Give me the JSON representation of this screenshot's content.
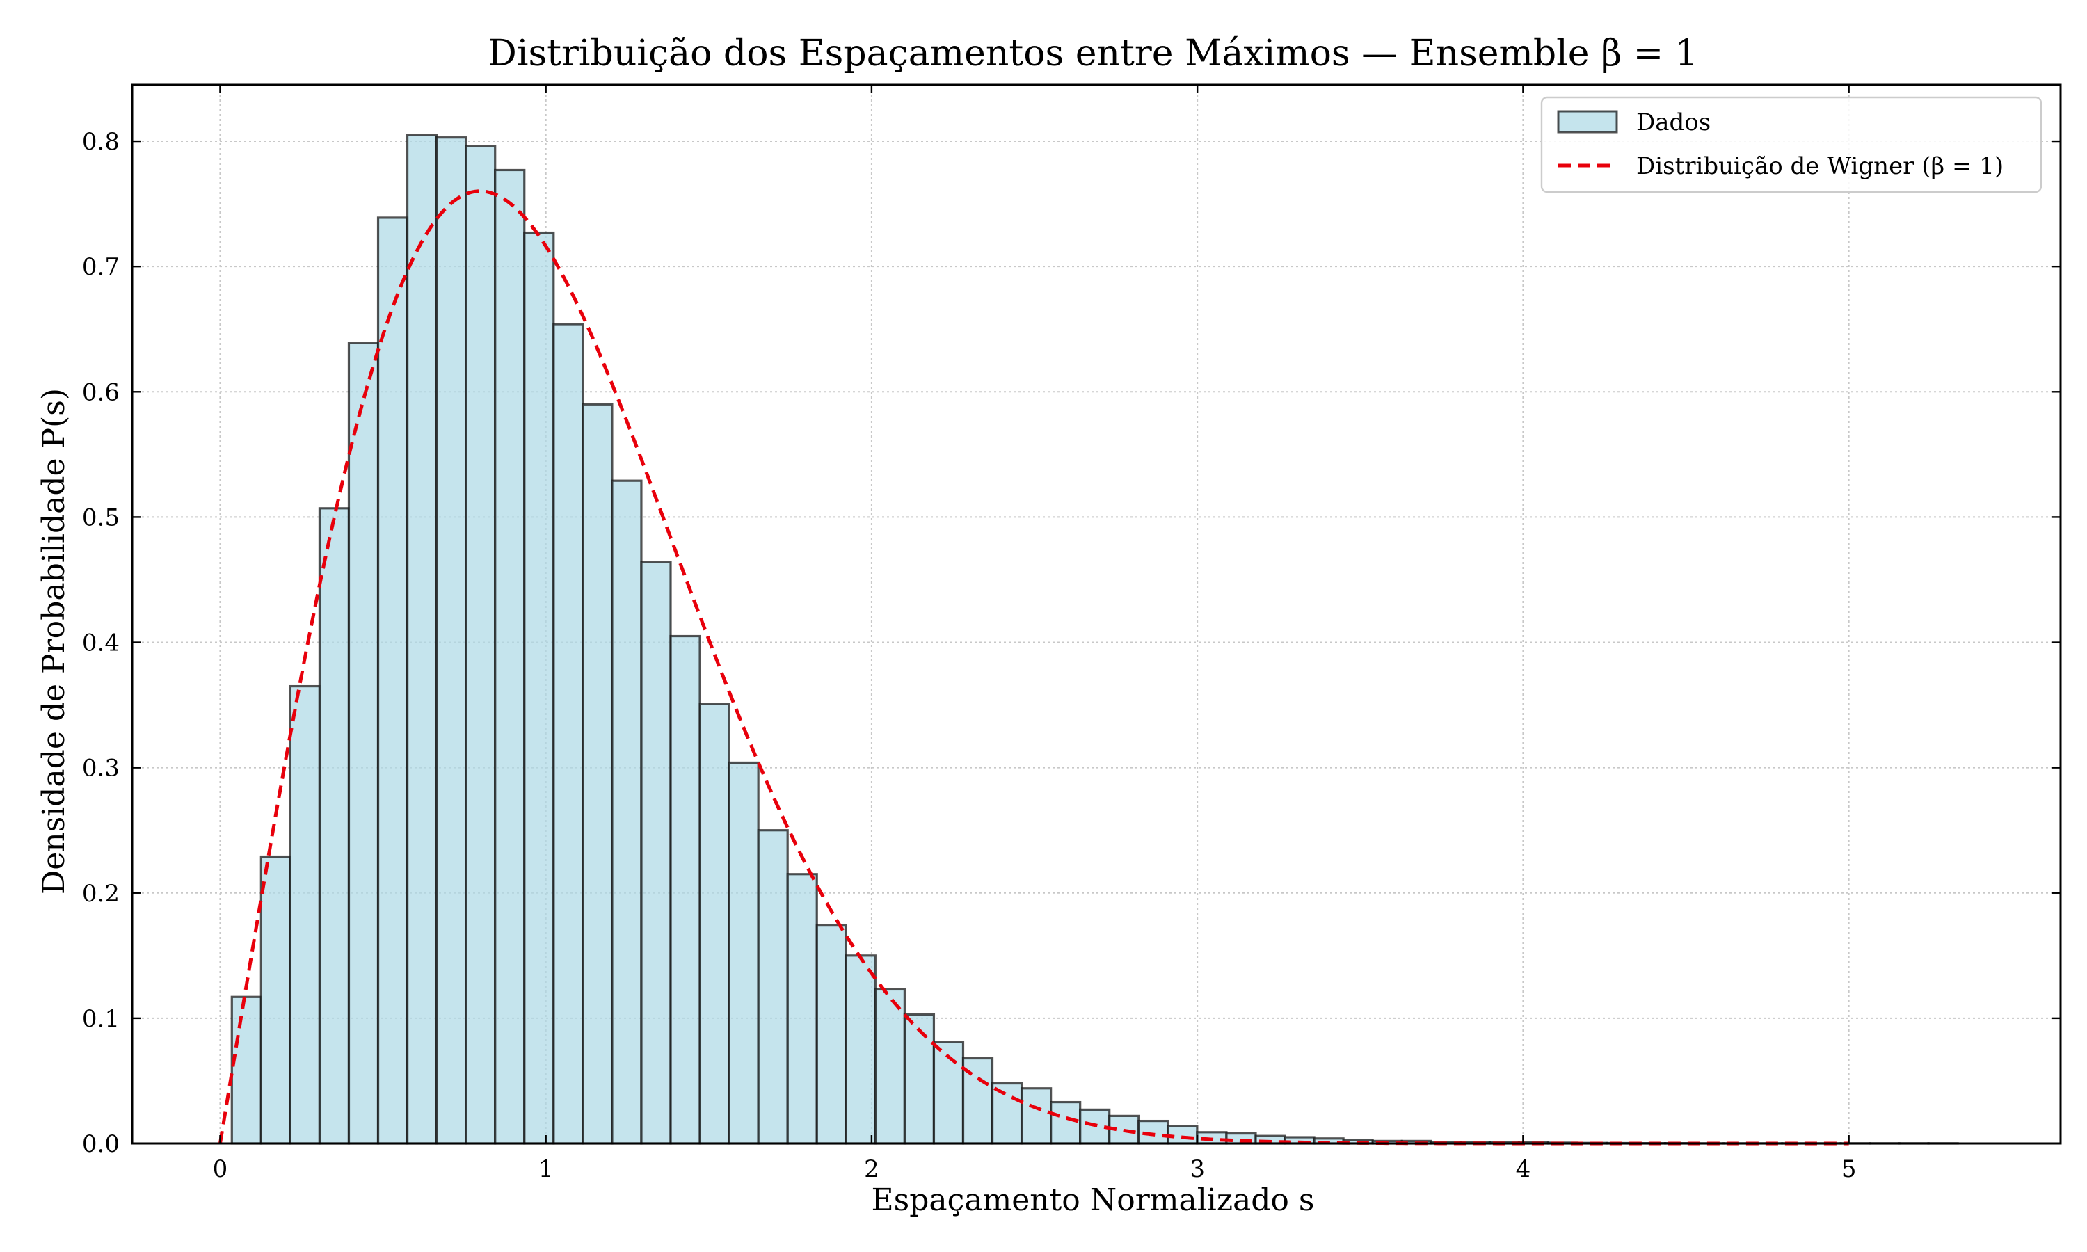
{
  "chart_data": {
    "type": "bar",
    "title": "Distribuição dos Espaçamentos entre Máximos — Ensemble β = 1",
    "xlabel": "Espaçamento Normalizado s",
    "ylabel": "Densidade de Probabilidade P(s)",
    "xlim": [
      -0.27,
      5.65
    ],
    "ylim": [
      0,
      0.845
    ],
    "xticks": [
      0,
      1,
      2,
      3,
      4,
      5
    ],
    "yticks": [
      0.0,
      0.1,
      0.2,
      0.3,
      0.4,
      0.5,
      0.6,
      0.7,
      0.8
    ],
    "xtick_labels": [
      "0",
      "1",
      "2",
      "3",
      "4",
      "5"
    ],
    "ytick_labels": [
      "0.0",
      "0.1",
      "0.2",
      "0.3",
      "0.4",
      "0.5",
      "0.6",
      "0.7",
      "0.8"
    ],
    "grid": true,
    "legend_position": "top-right",
    "bin_width": 0.0898,
    "bins_start": 0.036,
    "series": [
      {
        "name": "Dados",
        "kind": "histogram",
        "color": "#add8e6",
        "values": [
          0.117,
          0.229,
          0.365,
          0.507,
          0.639,
          0.739,
          0.805,
          0.803,
          0.796,
          0.777,
          0.727,
          0.654,
          0.59,
          0.529,
          0.464,
          0.405,
          0.351,
          0.304,
          0.25,
          0.215,
          0.174,
          0.15,
          0.123,
          0.103,
          0.081,
          0.068,
          0.048,
          0.044,
          0.033,
          0.027,
          0.022,
          0.018,
          0.014,
          0.009,
          0.008,
          0.006,
          0.005,
          0.004,
          0.003,
          0.002,
          0.002,
          0.001,
          0.001,
          0.001,
          0.0008,
          0.0006,
          0.0004,
          0.0003,
          0.0002,
          0.0002,
          0.0001,
          0.0001,
          0.0001,
          0.0001,
          0.0001,
          0.0001,
          0.0001,
          0.0001,
          0.0001
        ]
      },
      {
        "name": "Distribuição de Wigner (β = 1)",
        "kind": "line",
        "style": "dashed",
        "color": "#e8000b",
        "function": "P(s) = (π/2) s exp(-π s² / 4)",
        "x_range": [
          0,
          5
        ]
      }
    ]
  }
}
